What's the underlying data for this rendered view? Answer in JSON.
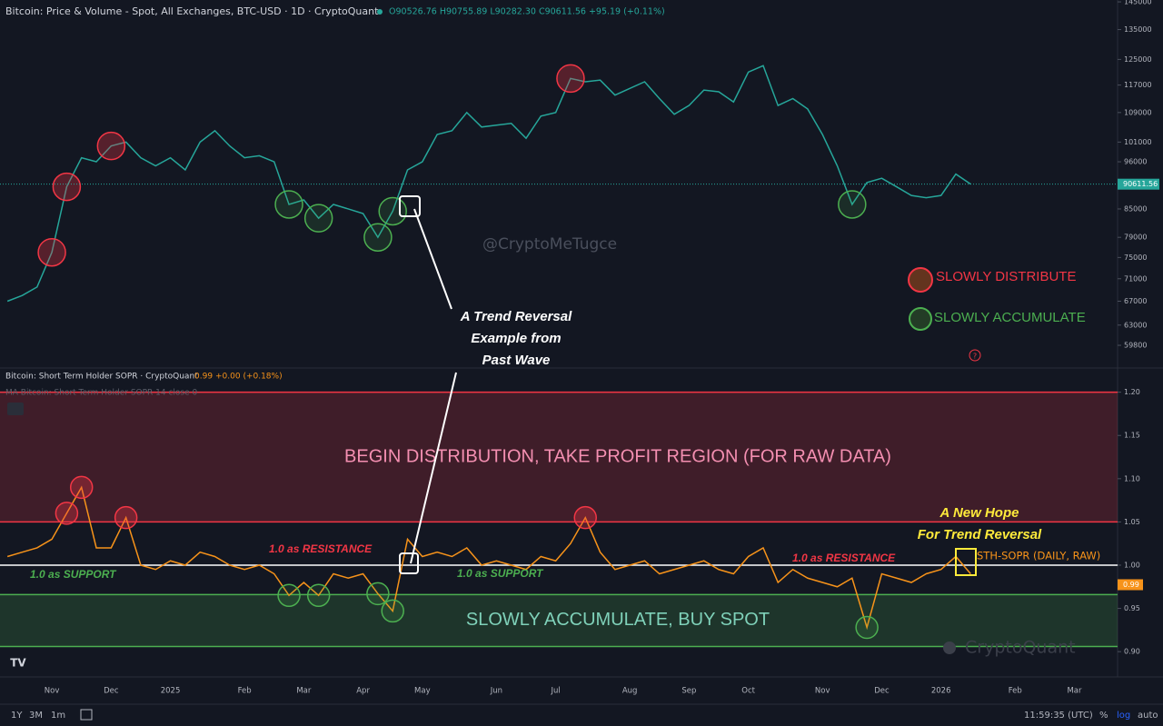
{
  "chart_data": [
    {
      "type": "line",
      "title": "Bitcoin: Price & Volume - Spot, All Exchanges, BTC-USD · 1D · CryptoQuant",
      "subtitle": "O90526.76 H90755.89 L90282.30 C90611.56 +95.19 (+0.11%)",
      "categories": [
        null,
        null,
        null,
        "Nov",
        null,
        null,
        null,
        "Dec",
        null,
        null,
        null,
        "2025",
        null,
        null,
        null,
        null,
        "Feb",
        null,
        null,
        null,
        "Mar",
        null,
        null,
        null,
        "Apr",
        null,
        null,
        null,
        "May",
        null,
        null,
        null,
        null,
        "Jun",
        null,
        null,
        null,
        "Jul",
        null,
        null,
        null,
        null,
        "Aug",
        null,
        null,
        null,
        "Sep",
        null,
        null,
        null,
        "Oct",
        null,
        null,
        null,
        null,
        "Nov",
        null,
        null,
        null,
        "Dec",
        null,
        null,
        null,
        "2026",
        null,
        null,
        null,
        null,
        "Feb",
        null,
        null,
        null,
        "Mar"
      ],
      "series": [
        {
          "name": "BTC-USD",
          "color": "#26a69a",
          "values": [
            67000,
            68000,
            69500,
            76000,
            90000,
            97000,
            96000,
            100000,
            101000,
            97000,
            95000,
            97000,
            94000,
            101000,
            104000,
            100000,
            97000,
            97500,
            96000,
            86000,
            87000,
            83000,
            86000,
            85000,
            84000,
            79000,
            84500,
            94000,
            96000,
            103000,
            104000,
            109000,
            105000,
            105500,
            106000,
            102000,
            108000,
            109000,
            119000,
            118000,
            118500,
            114000,
            116000,
            118000,
            113000,
            108500,
            111000,
            115500,
            115000,
            112000,
            121000,
            123000,
            111000,
            113000,
            110000,
            103000,
            95000,
            86000,
            91000,
            92000,
            90000,
            88000,
            87500,
            88000,
            93000,
            90611.56,
            null,
            null,
            null,
            null,
            null,
            null,
            null
          ]
        }
      ],
      "log_scale": true,
      "ylim": [
        56400,
        145700
      ],
      "yticks": [
        59800,
        63000,
        67000,
        71000,
        75000,
        79000,
        85000,
        96000,
        101000,
        109000,
        117000,
        125000,
        135000,
        145000
      ]
    },
    {
      "type": "line",
      "title": "Bitcoin: Short Term Holder SOPR · CryptoQuant",
      "subtitle": "+0.00 (+0.18%)",
      "ma_label": "MA Bitcoin: Short Term Holder SOPR 14 close 0",
      "series": [
        {
          "name": "STH-SOPR (DAILY, RAW)",
          "color": "#f7931a",
          "values": [
            1.01,
            1.015,
            1.02,
            1.03,
            1.06,
            1.09,
            1.02,
            1.02,
            1.055,
            1.0,
            0.995,
            1.005,
            1.0,
            1.015,
            1.01,
            1.0,
            0.995,
            1.0,
            0.99,
            0.965,
            0.98,
            0.965,
            0.99,
            0.985,
            0.99,
            0.967,
            0.947,
            1.03,
            1.01,
            1.015,
            1.01,
            1.02,
            1.0,
            1.005,
            1.0,
            0.995,
            1.01,
            1.005,
            1.025,
            1.055,
            1.015,
            0.995,
            1.0,
            1.005,
            0.99,
            0.995,
            1.0,
            1.005,
            0.995,
            0.99,
            1.01,
            1.02,
            0.98,
            0.995,
            0.985,
            0.98,
            0.975,
            0.985,
            0.928,
            0.99,
            0.985,
            0.98,
            0.99,
            0.995,
            1.01,
            0.99,
            null,
            null,
            null,
            null,
            null,
            null,
            null
          ]
        }
      ],
      "ylim": [
        0.876,
        1.228
      ],
      "yticks": [
        {
          "value": 0.9,
          "label": "0.90"
        },
        0.95,
        {
          "value": 1.0,
          "label": "1.00"
        },
        1.05,
        {
          "value": 1.1,
          "label": "1.10"
        },
        1.15,
        {
          "value": 1.2,
          "label": "1.20"
        }
      ],
      "reference_line": 1,
      "zones": [
        {
          "from": 1.05,
          "to": 1.2,
          "label": "BEGIN DISTRIBUTION, TAKE PROFIT REGION (FOR RAW DATA)",
          "color": "#f23645"
        },
        {
          "from": 0.906,
          "to": 0.966,
          "label": "SLOWLY ACCUMULATE, BUY SPOT",
          "color": "#4caf50"
        }
      ]
    }
  ],
  "annotations": {
    "watermark": "@CryptoMeTugce",
    "brand": "CryptoQuant",
    "reversal": [
      "A Trend Reversal",
      "Example from",
      "Past Wave"
    ],
    "hope": [
      "A New Hope",
      "For Trend Reversal"
    ],
    "resistance": "1.0 as RESISTANCE",
    "support": "1.0 as SUPPORT",
    "legend_distribute": "SLOWLY DISTRIBUTE",
    "legend_accumulate": "SLOWLY ACCUMULATE",
    "help": "?"
  },
  "ui": {
    "ranges": [
      "1Y",
      "3M",
      "1m"
    ],
    "clock": "11:59:35 (UTC)",
    "percent": "%",
    "log": "log",
    "auto": "auto"
  }
}
